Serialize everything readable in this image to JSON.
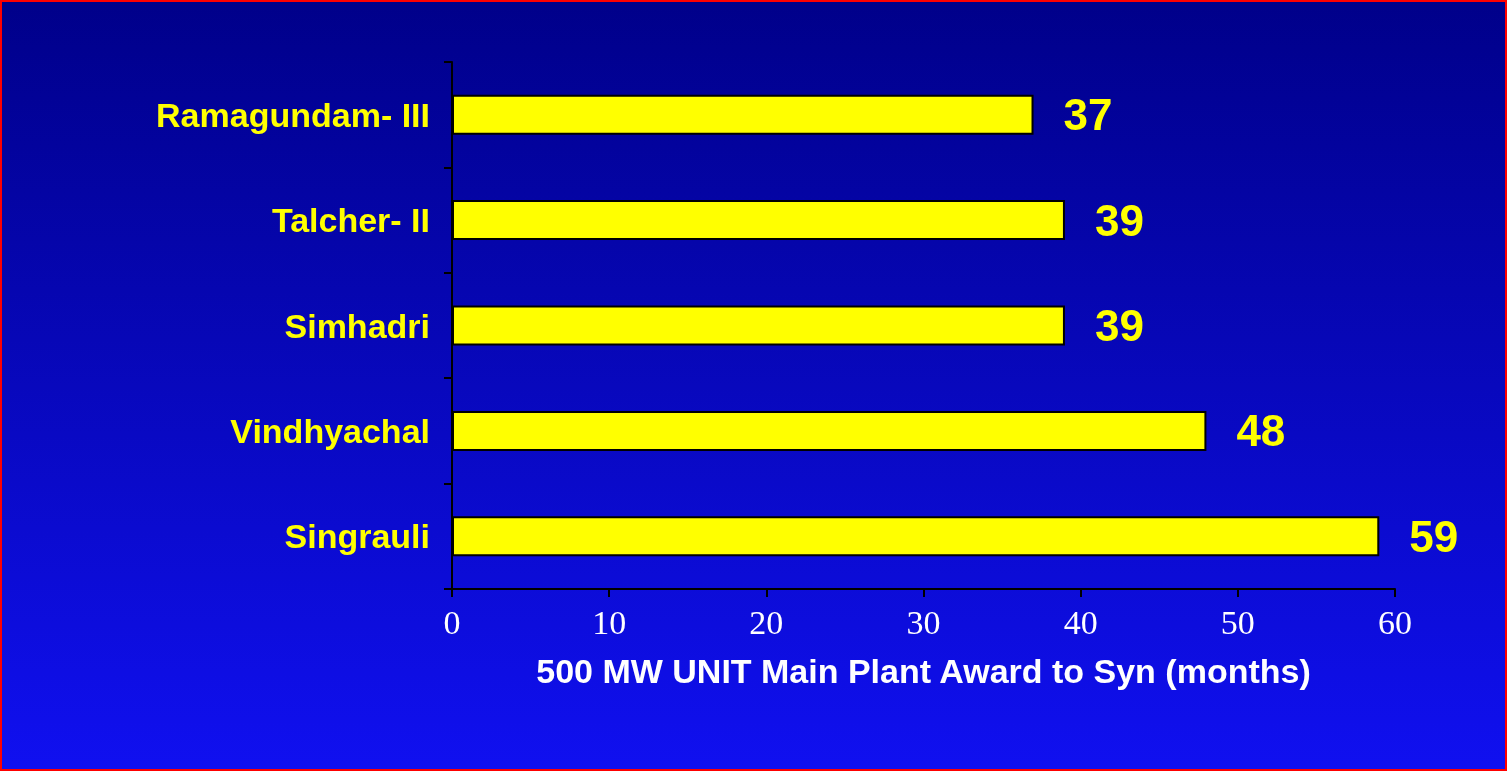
{
  "chart_data": {
    "type": "bar",
    "orientation": "horizontal",
    "xlabel": "500 MW UNIT Main Plant Award to Syn (months)",
    "categories": [
      "Ramagundam- III",
      "Talcher- II",
      "Simhadri",
      "Vindhyachal",
      "Singrauli"
    ],
    "values": [
      37,
      39,
      39,
      48,
      59
    ],
    "color": "#ffff00",
    "xlim": [
      0,
      60
    ],
    "xticks": [
      0,
      10,
      20,
      30,
      40,
      50,
      60
    ],
    "grid": false,
    "data_labels": true
  }
}
